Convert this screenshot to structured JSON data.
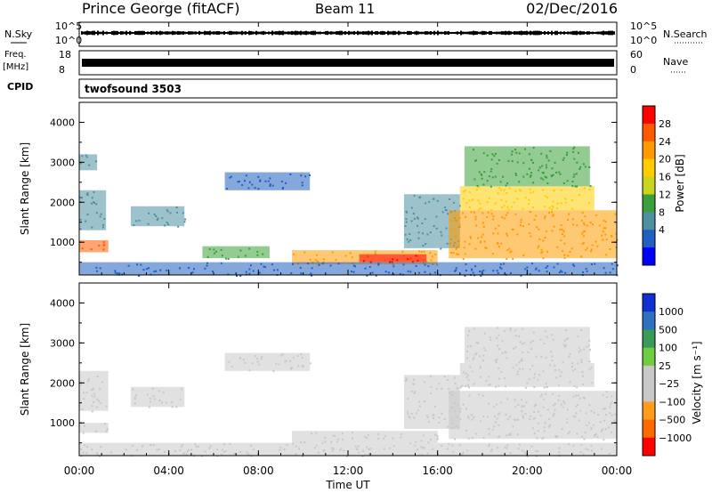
{
  "header": {
    "title": "Prince George (fitACF)",
    "beam": "Beam 11",
    "date": "02/Dec/2016"
  },
  "noise_panel": {
    "left_label": "N.Sky",
    "right_label": "N.Search",
    "ticks_left": [
      "10^5",
      "10^0"
    ],
    "ticks_right": [
      "10^5",
      "10^0"
    ]
  },
  "freq_panel": {
    "left_label_1": "Freq.",
    "left_label_2": "[MHz]",
    "right_label": "Nave",
    "ticks_left": [
      "18",
      "8"
    ],
    "ticks_right": [
      "60",
      "0"
    ]
  },
  "cpid_panel": {
    "label": "CPID",
    "program": "twofsound 3503"
  },
  "power_panel": {
    "ylabel": "Slant Range [km]",
    "yticks": [
      "4000",
      "3000",
      "2000",
      "1000"
    ],
    "colorbar_label": "Power [dB]",
    "colorbar_ticks": [
      "28",
      "24",
      "20",
      "16",
      "12",
      "8",
      "4"
    ],
    "colorbar_colors": [
      "#ff0000",
      "#ff5a00",
      "#ff9a00",
      "#ffcc00",
      "#c8d41e",
      "#3aa03a",
      "#4f8fa0",
      "#2060c0",
      "#0000ff"
    ]
  },
  "velocity_panel": {
    "ylabel": "Slant Range [km]",
    "yticks": [
      "4000",
      "3000",
      "2000",
      "1000"
    ],
    "colorbar_label": "Velocity [m s⁻¹]",
    "colorbar_ticks": [
      "1000",
      "500",
      "100",
      "25",
      "−25",
      "−100",
      "−500",
      "−1000"
    ],
    "colorbar_colors": [
      "#1030d0",
      "#2f70c0",
      "#3a9a5a",
      "#70cc40",
      "#c8c8c8",
      "#c8c8c8",
      "#ff9c1a",
      "#ff6a00",
      "#ff0000"
    ]
  },
  "xaxis": {
    "label": "Time UT",
    "ticks": [
      "00:00",
      "04:00",
      "08:00",
      "12:00",
      "16:00",
      "20:00",
      "00:00"
    ]
  },
  "chart_data": {
    "type": "heatmap",
    "title": "Prince George (fitACF)",
    "x_range_hours": [
      0,
      24
    ],
    "y_range_km": [
      180,
      4500
    ],
    "panels": [
      {
        "name": "Power",
        "unit": "dB",
        "scale_range": [
          0,
          30
        ],
        "regions": [
          {
            "t0": 0.0,
            "t1": 1.3,
            "r0": 750,
            "r1": 1050,
            "value": 24
          },
          {
            "t0": 0.0,
            "t1": 1.2,
            "r0": 1300,
            "r1": 2300,
            "value": 9
          },
          {
            "t0": 0.0,
            "t1": 0.8,
            "r0": 2800,
            "r1": 3200,
            "value": 8
          },
          {
            "t0": 2.3,
            "t1": 4.7,
            "r0": 1400,
            "r1": 1900,
            "value": 8
          },
          {
            "t0": 6.5,
            "t1": 10.3,
            "r0": 2300,
            "r1": 2750,
            "value": 6
          },
          {
            "t0": 5.5,
            "t1": 8.5,
            "r0": 600,
            "r1": 900,
            "value": 10
          },
          {
            "t0": 9.5,
            "t1": 16.0,
            "r0": 450,
            "r1": 800,
            "value": 20
          },
          {
            "t0": 12.5,
            "t1": 15.5,
            "r0": 500,
            "r1": 700,
            "value": 27
          },
          {
            "t0": 14.5,
            "t1": 17.0,
            "r0": 850,
            "r1": 2200,
            "value": 8
          },
          {
            "t0": 16.5,
            "t1": 24.0,
            "r0": 600,
            "r1": 1800,
            "value": 21
          },
          {
            "t0": 17.0,
            "t1": 23.0,
            "r0": 1800,
            "r1": 2400,
            "value": 17
          },
          {
            "t0": 17.2,
            "t1": 22.8,
            "r0": 2400,
            "r1": 3400,
            "value": 10
          },
          {
            "t0": 0.0,
            "t1": 24.0,
            "r0": 180,
            "r1": 500,
            "value": 6
          }
        ]
      },
      {
        "name": "Velocity",
        "unit": "m s^-1",
        "scale_range": [
          -1000,
          1000
        ],
        "regions": [
          {
            "t0": 0.0,
            "t1": 1.3,
            "r0": 750,
            "r1": 1000,
            "value": 20
          },
          {
            "t0": 0.0,
            "t1": 1.3,
            "r0": 1300,
            "r1": 2300,
            "value": -200
          },
          {
            "t0": 2.3,
            "t1": 4.7,
            "r0": 1400,
            "r1": 1900,
            "value": -150
          },
          {
            "t0": 6.5,
            "t1": 10.3,
            "r0": 2300,
            "r1": 2750,
            "value": 0
          },
          {
            "t0": 14.5,
            "t1": 17.0,
            "r0": 850,
            "r1": 2200,
            "value": 0
          },
          {
            "t0": 16.5,
            "t1": 24.0,
            "r0": 600,
            "r1": 1800,
            "value": 0
          },
          {
            "t0": 17.0,
            "t1": 23.0,
            "r0": 1900,
            "r1": 2500,
            "value": -300
          },
          {
            "t0": 17.2,
            "t1": 22.8,
            "r0": 2500,
            "r1": 3400,
            "value": -200
          },
          {
            "t0": 9.5,
            "t1": 16.0,
            "r0": 500,
            "r1": 800,
            "value": -90
          },
          {
            "t0": 0.0,
            "t1": 24.0,
            "r0": 180,
            "r1": 500,
            "value": 60
          }
        ]
      }
    ]
  }
}
